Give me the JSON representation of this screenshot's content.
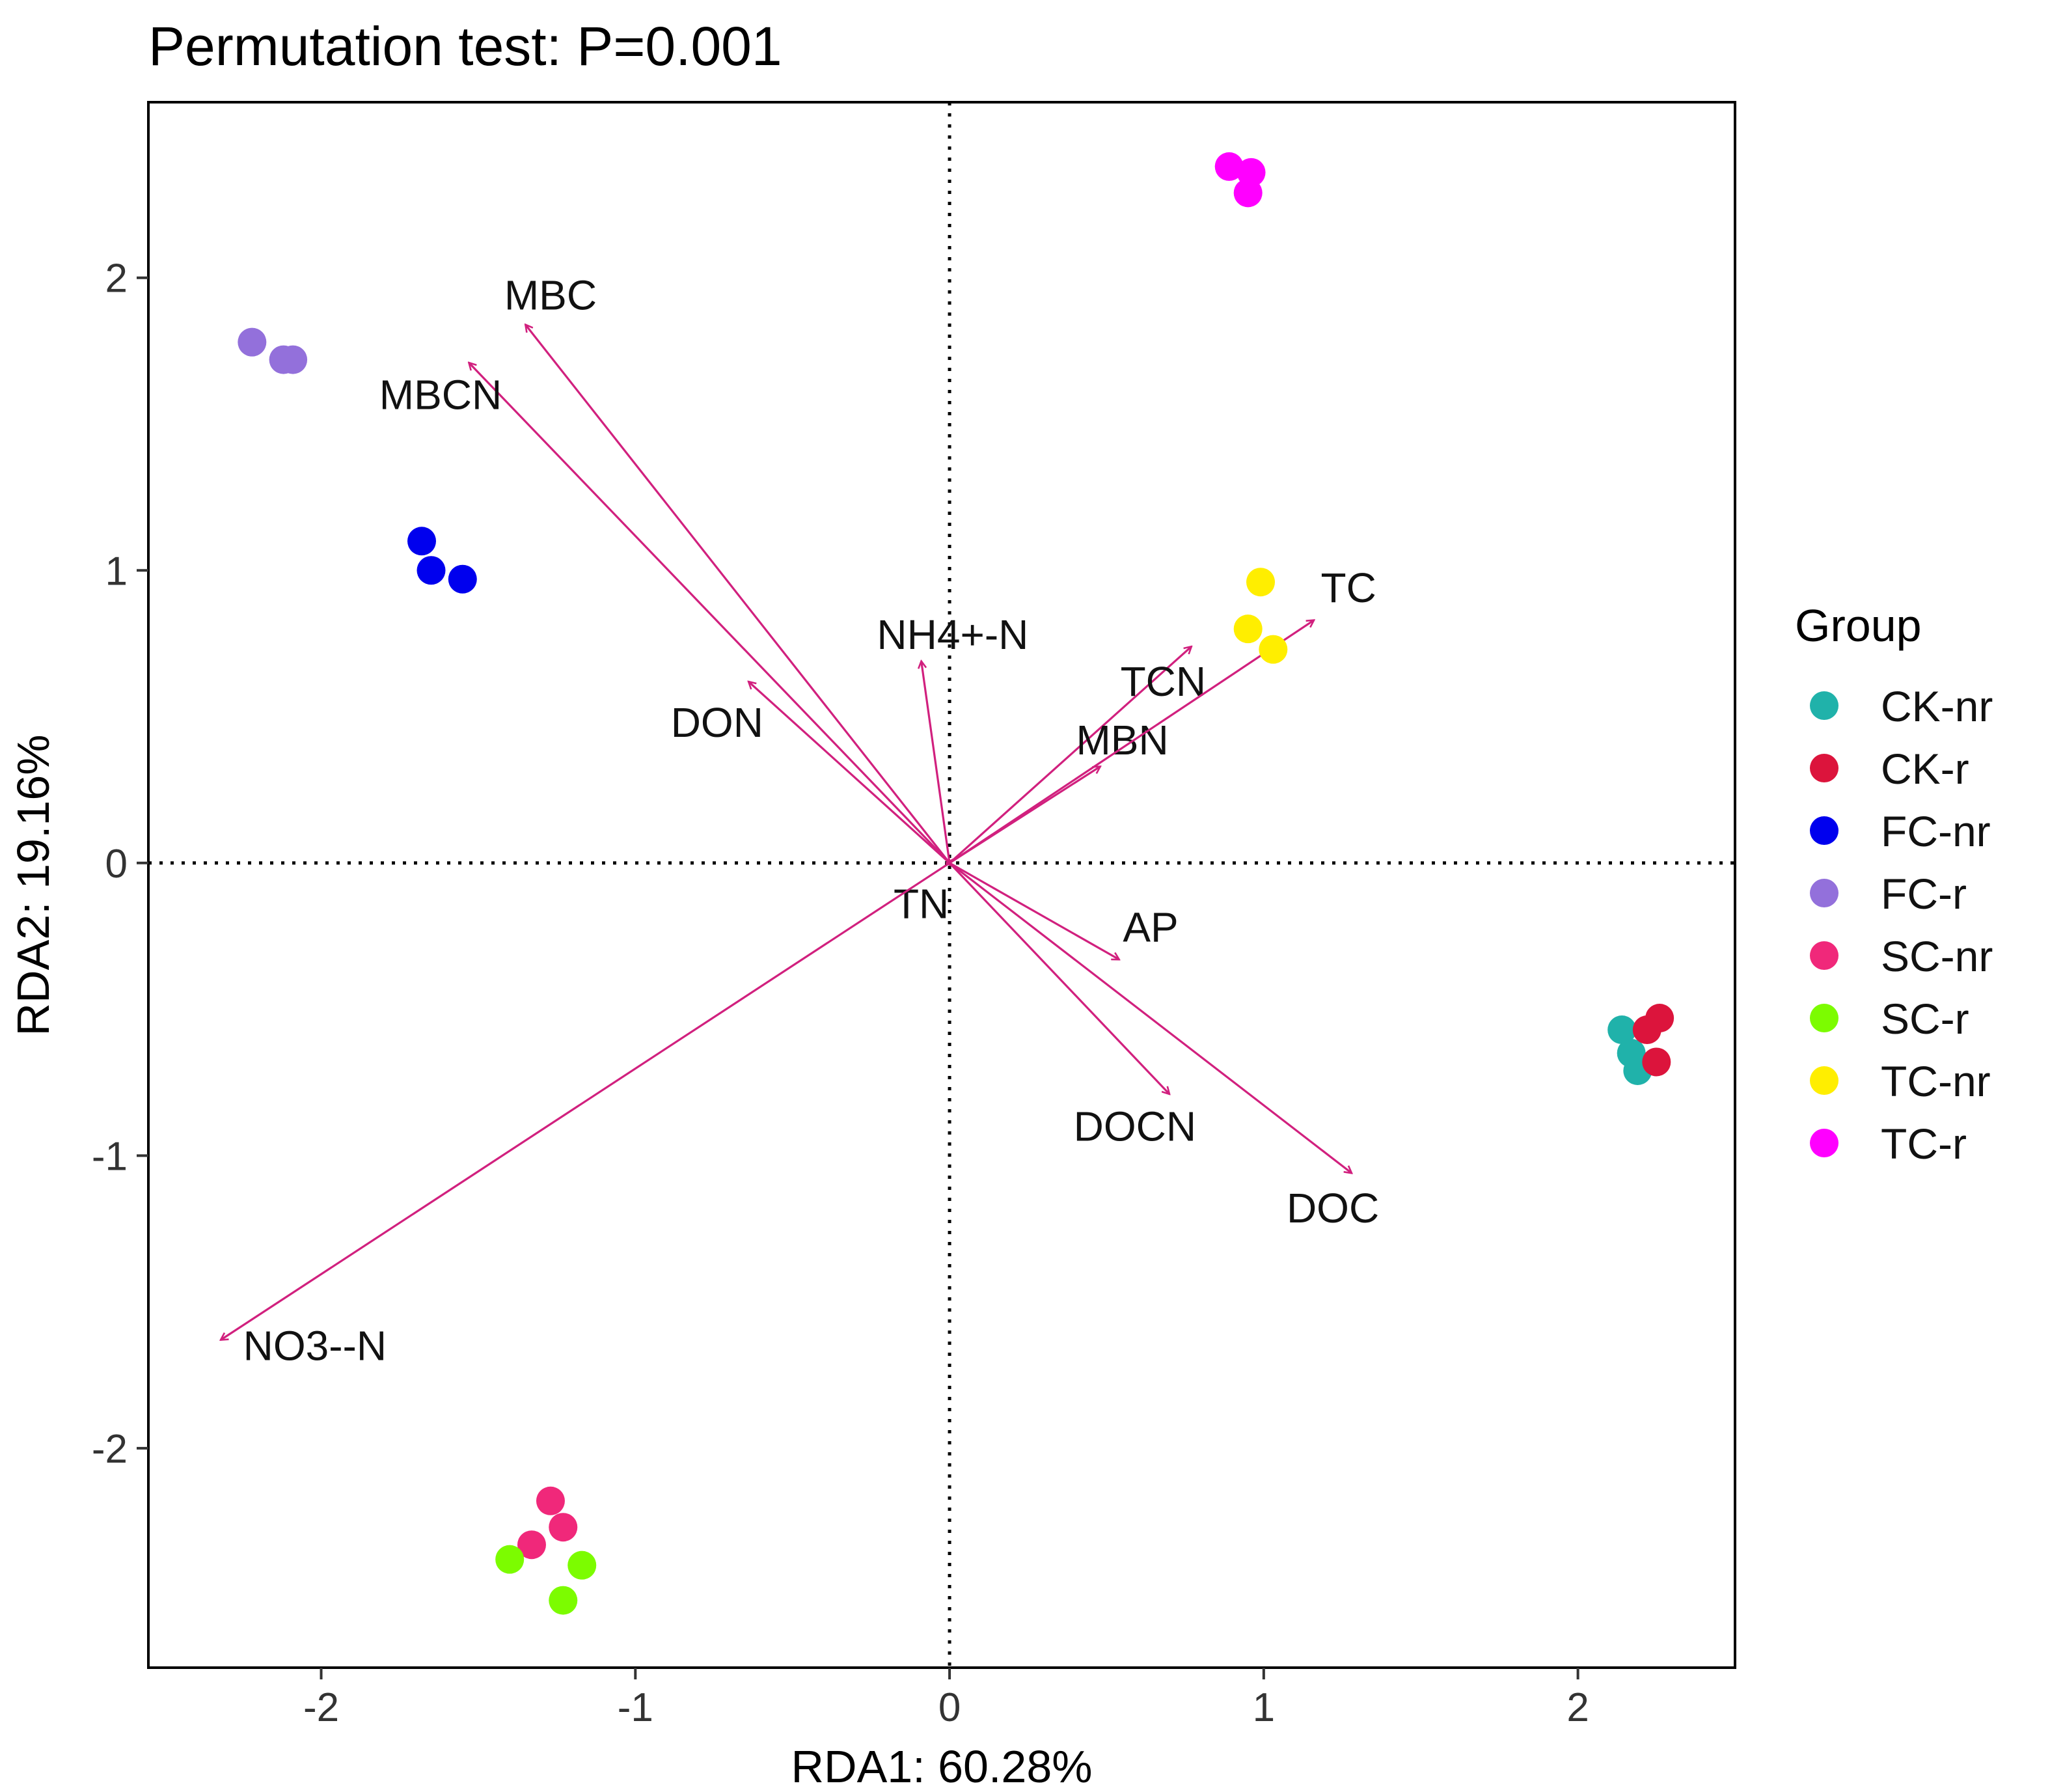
{
  "chart_data": {
    "type": "scatter",
    "title": "Permutation test: P=0.001",
    "xlabel": "RDA1: 60.28%",
    "ylabel": "RDA2: 19.16%",
    "xlim": [
      -2.55,
      2.5
    ],
    "ylim": [
      -2.75,
      2.6
    ],
    "xticks": [
      -2,
      -1,
      0,
      1,
      2
    ],
    "yticks": [
      -2,
      -1,
      0,
      1,
      2
    ],
    "xtick_labels": [
      "-2",
      "-1",
      "0",
      "1",
      "2"
    ],
    "ytick_labels": [
      "-2",
      "-1",
      "0",
      "1",
      "2"
    ],
    "grid": false,
    "reference_lines": [
      {
        "axis": "x",
        "value": 0,
        "style": "dotted"
      },
      {
        "axis": "y",
        "value": 0,
        "style": "dotted"
      }
    ],
    "legend_title": "Group",
    "legend_position": "right",
    "series": [
      {
        "name": "CK-nr",
        "color": "#20B2AA",
        "points": [
          [
            2.14,
            -0.57
          ],
          [
            2.17,
            -0.65
          ],
          [
            2.19,
            -0.71
          ]
        ]
      },
      {
        "name": "CK-r",
        "color": "#DC143C",
        "points": [
          [
            2.26,
            -0.53
          ],
          [
            2.22,
            -0.57
          ],
          [
            2.25,
            -0.68
          ]
        ]
      },
      {
        "name": "FC-nr",
        "color": "#0000EE",
        "points": [
          [
            -1.68,
            1.1
          ],
          [
            -1.65,
            1.0
          ],
          [
            -1.55,
            0.97
          ]
        ]
      },
      {
        "name": "FC-r",
        "color": "#9370DB",
        "points": [
          [
            -2.22,
            1.78
          ],
          [
            -2.12,
            1.72
          ],
          [
            -2.09,
            1.72
          ]
        ]
      },
      {
        "name": "SC-nr",
        "color": "#F0287A",
        "points": [
          [
            -1.27,
            -2.18
          ],
          [
            -1.23,
            -2.27
          ],
          [
            -1.33,
            -2.33
          ]
        ]
      },
      {
        "name": "SC-r",
        "color": "#7CFC00",
        "points": [
          [
            -1.4,
            -2.38
          ],
          [
            -1.17,
            -2.4
          ],
          [
            -1.23,
            -2.52
          ]
        ]
      },
      {
        "name": "TC-nr",
        "color": "#FFEE00",
        "points": [
          [
            0.99,
            0.96
          ],
          [
            0.95,
            0.8
          ],
          [
            1.03,
            0.73
          ]
        ]
      },
      {
        "name": "TC-r",
        "color": "#FF00FF",
        "points": [
          [
            0.89,
            2.38
          ],
          [
            0.96,
            2.36
          ],
          [
            0.95,
            2.29
          ]
        ]
      }
    ],
    "arrows": {
      "color": "#D1207E",
      "items": [
        {
          "label": "MBC",
          "x": -1.35,
          "y": 1.84,
          "label_x": -1.27,
          "label_y": 1.94
        },
        {
          "label": "MBCN",
          "x": -1.53,
          "y": 1.71,
          "label_x": -1.62,
          "label_y": 1.6
        },
        {
          "label": "NH4+-N",
          "x": -0.09,
          "y": 0.69,
          "label_x": 0.01,
          "label_y": 0.78
        },
        {
          "label": "DON",
          "x": -0.64,
          "y": 0.62,
          "label_x": -0.74,
          "label_y": 0.48
        },
        {
          "label": "TCN",
          "x": 0.77,
          "y": 0.74,
          "label_x": 0.68,
          "label_y": 0.62
        },
        {
          "label": "MBN",
          "x": 0.48,
          "y": 0.33,
          "label_x": 0.55,
          "label_y": 0.42
        },
        {
          "label": "TC",
          "x": 1.16,
          "y": 0.83,
          "label_x": 1.27,
          "label_y": 0.94
        },
        {
          "label": "TN",
          "x": -0.01,
          "y": 0.0,
          "label_x": -0.09,
          "label_y": -0.14
        },
        {
          "label": "AP",
          "x": 0.54,
          "y": -0.33,
          "label_x": 0.64,
          "label_y": -0.22
        },
        {
          "label": "DOCN",
          "x": 0.7,
          "y": -0.79,
          "label_x": 0.59,
          "label_y": -0.9
        },
        {
          "label": "DOC",
          "x": 1.28,
          "y": -1.06,
          "label_x": 1.22,
          "label_y": -1.18
        },
        {
          "label": "NO3--N",
          "x": -2.32,
          "y": -1.63,
          "label_x": -2.02,
          "label_y": -1.65
        }
      ]
    }
  }
}
